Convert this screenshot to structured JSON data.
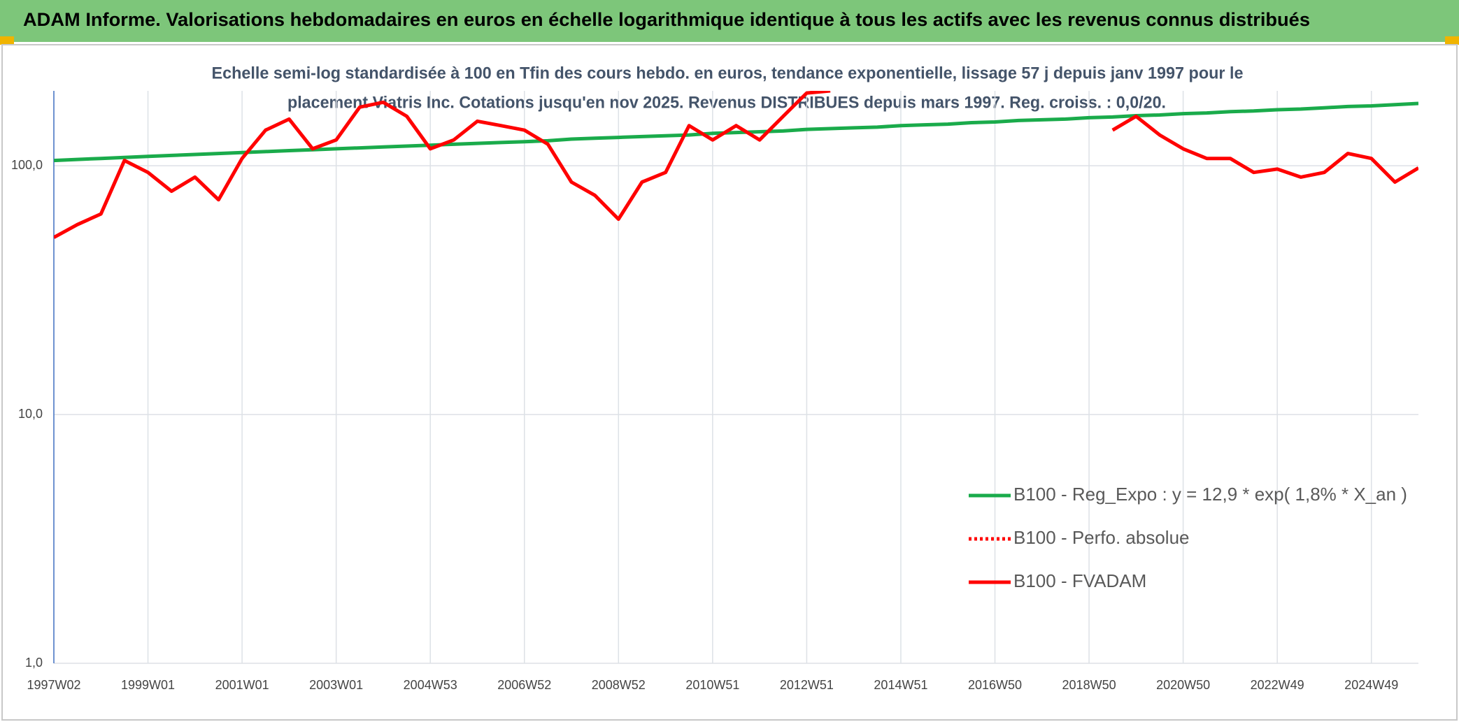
{
  "header": {
    "title": "ADAM Informe. Valorisations hebdomadaires en euros en échelle logarithmique identique à tous les actifs avec les revenus connus distribués"
  },
  "chart_data": {
    "type": "line",
    "title": [
      "Echelle semi-log standardisée à 100 en Tfin des cours hebdo. en euros, tendance exponentielle, lissage 57 j depuis janv 1997 pour le",
      "placement Viatris Inc. Cotations jusqu'en nov 2025. Revenus DISTRIBUES depuis mars 1997. Reg. croiss. : 0,0/20."
    ],
    "categories": [
      "1997W02",
      null,
      null,
      null,
      "1999W01",
      null,
      null,
      null,
      "2001W01",
      null,
      null,
      null,
      "2003W01",
      null,
      null,
      null,
      "2004W53",
      null,
      null,
      null,
      "2006W52",
      null,
      null,
      null,
      "2008W52",
      null,
      null,
      null,
      "2010W51",
      null,
      null,
      null,
      "2012W51",
      null,
      null,
      null,
      "2014W51",
      null,
      null,
      null,
      "2016W50",
      null,
      null,
      null,
      "2018W50",
      null,
      null,
      null,
      "2020W50",
      null,
      null,
      null,
      "2022W49",
      null,
      null,
      null,
      "2024W49",
      null,
      null
    ],
    "series": [
      {
        "name": "B100 - Reg_Expo : y = 12,9 * exp( 1,8% *  X_an )",
        "color": "#1aab4b",
        "dash": false,
        "values": [
          105,
          106,
          107,
          108,
          109,
          110,
          111,
          112,
          113,
          114,
          115,
          116,
          117,
          118,
          119,
          120,
          121,
          122,
          123,
          124,
          125,
          126,
          128,
          129,
          130,
          131,
          132,
          133,
          135,
          136,
          137,
          138,
          140,
          141,
          142,
          143,
          145,
          146,
          147,
          149,
          150,
          152,
          153,
          154,
          156,
          157,
          159,
          160,
          162,
          163,
          165,
          166,
          168,
          169,
          171,
          173,
          174,
          176,
          178
        ]
      },
      {
        "name": "B100 - Perfo. absolue",
        "color": "#ff0000",
        "dash": true,
        "values": [
          null,
          null,
          null,
          null,
          null,
          null,
          null,
          null,
          null,
          null,
          null,
          null,
          null,
          null,
          null,
          null,
          null,
          null,
          null,
          null,
          null,
          null,
          null,
          null,
          null,
          null,
          null,
          null,
          null,
          null,
          null,
          null,
          null,
          null,
          null,
          null,
          null,
          null,
          null,
          null,
          null,
          null,
          null,
          null,
          null,
          null,
          null,
          null,
          null,
          null,
          null,
          null,
          null,
          null,
          null,
          null,
          null,
          null,
          null
        ]
      },
      {
        "name": "B100 - FVADAM",
        "color": "#ff0000",
        "dash": false,
        "values": [
          51.5,
          58,
          64,
          105,
          94,
          79,
          90,
          73,
          107,
          139,
          154,
          117,
          127,
          172,
          180,
          158,
          117,
          127,
          151,
          145,
          139,
          122,
          86,
          76,
          61,
          86,
          94,
          145,
          127,
          145,
          127,
          158,
          196,
          200,
          null,
          null,
          null,
          null,
          null,
          null,
          null,
          null,
          null,
          null,
          null,
          139,
          158,
          133,
          117,
          107,
          107,
          94,
          97,
          90,
          94,
          112,
          107,
          86,
          98
        ]
      }
    ],
    "ylim": [
      1,
      200
    ],
    "log_y": true,
    "yticks": [
      {
        "value": 1,
        "label": "1,0"
      },
      {
        "value": 10,
        "label": "10,0"
      },
      {
        "value": 100,
        "label": "100,0"
      }
    ],
    "grid": true,
    "legend": "lower right"
  }
}
